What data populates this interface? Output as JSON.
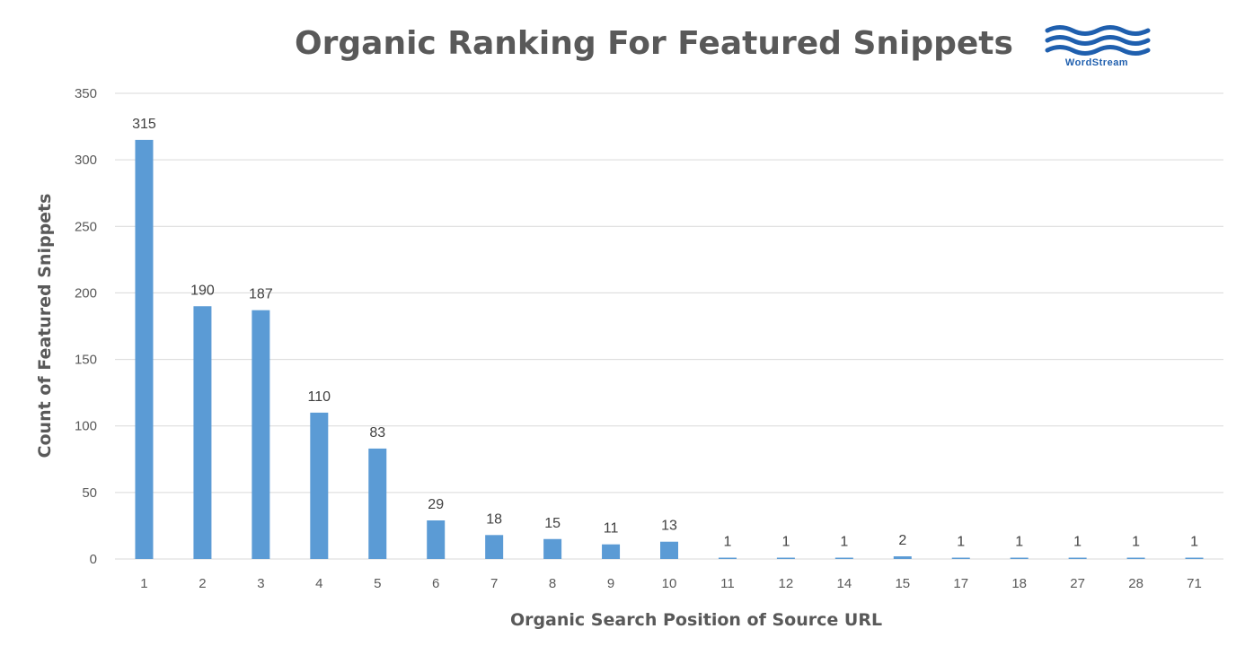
{
  "chart_data": {
    "type": "bar",
    "title": "Organic Ranking For Featured Snippets",
    "xlabel": "Organic Search Position of Source URL",
    "ylabel": "Count of Featured Snippets",
    "categories": [
      "1",
      "2",
      "3",
      "4",
      "5",
      "6",
      "7",
      "8",
      "9",
      "10",
      "11",
      "12",
      "14",
      "15",
      "17",
      "18",
      "27",
      "28",
      "71"
    ],
    "values": [
      315,
      190,
      187,
      110,
      83,
      29,
      18,
      15,
      11,
      13,
      1,
      1,
      1,
      2,
      1,
      1,
      1,
      1,
      1
    ],
    "data_labels": [
      "315",
      "190",
      "187",
      "110",
      "83",
      "29",
      "18",
      "15",
      "11",
      "13",
      "1",
      "1",
      "1",
      "2",
      "1",
      "1",
      "1",
      "1",
      "1"
    ],
    "ylim": [
      0,
      350
    ],
    "yticks": [
      "0",
      "50",
      "100",
      "150",
      "200",
      "250",
      "300",
      "350"
    ],
    "grid": true,
    "bar_color": "#5b9bd5",
    "logo": {
      "name": "wordstream-logo",
      "text": "WordStream",
      "color": "#1f5fae"
    }
  }
}
